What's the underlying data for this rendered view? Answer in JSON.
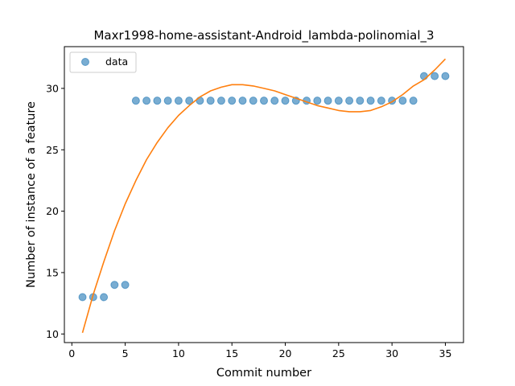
{
  "chart_data": {
    "type": "scatter",
    "title": "Maxr1998-home-assistant-Android_lambda-polinomial_3",
    "xlabel": "Commit number",
    "ylabel": "Number of instance of a feature",
    "xlim": [
      -0.7,
      36.7
    ],
    "ylim": [
      9.3,
      33.4
    ],
    "xticks": [
      0,
      5,
      10,
      15,
      20,
      25,
      30,
      35
    ],
    "yticks": [
      10,
      15,
      20,
      25,
      30
    ],
    "grid": false,
    "legend_position": "upper-left",
    "series": [
      {
        "name": "data",
        "kind": "scatter",
        "color": "#1f77b4",
        "x": [
          1,
          2,
          3,
          4,
          5,
          6,
          7,
          8,
          9,
          10,
          11,
          12,
          13,
          14,
          15,
          16,
          17,
          18,
          19,
          20,
          21,
          22,
          23,
          24,
          25,
          26,
          27,
          28,
          29,
          30,
          31,
          32,
          33,
          34,
          35
        ],
        "y": [
          13,
          13,
          13,
          14,
          14,
          29,
          29,
          29,
          29,
          29,
          29,
          29,
          29,
          29,
          29,
          29,
          29,
          29,
          29,
          29,
          29,
          29,
          29,
          29,
          29,
          29,
          29,
          29,
          29,
          29,
          29,
          29,
          31,
          31,
          31
        ]
      },
      {
        "kind": "line",
        "color": "#ff7f0e",
        "x": [
          1,
          2,
          3,
          4,
          5,
          6,
          7,
          8,
          9,
          10,
          11,
          12,
          13,
          14,
          15,
          16,
          17,
          18,
          19,
          20,
          21,
          22,
          23,
          24,
          25,
          26,
          27,
          28,
          29,
          30,
          31,
          32,
          33,
          34,
          35
        ],
        "y": [
          10.1,
          13.2,
          15.9,
          18.4,
          20.6,
          22.5,
          24.2,
          25.6,
          26.8,
          27.8,
          28.6,
          29.3,
          29.8,
          30.1,
          30.3,
          30.3,
          30.2,
          30.0,
          29.8,
          29.5,
          29.2,
          28.9,
          28.6,
          28.4,
          28.2,
          28.1,
          28.1,
          28.2,
          28.5,
          28.9,
          29.5,
          30.2,
          30.7,
          31.5,
          32.4
        ]
      }
    ]
  }
}
